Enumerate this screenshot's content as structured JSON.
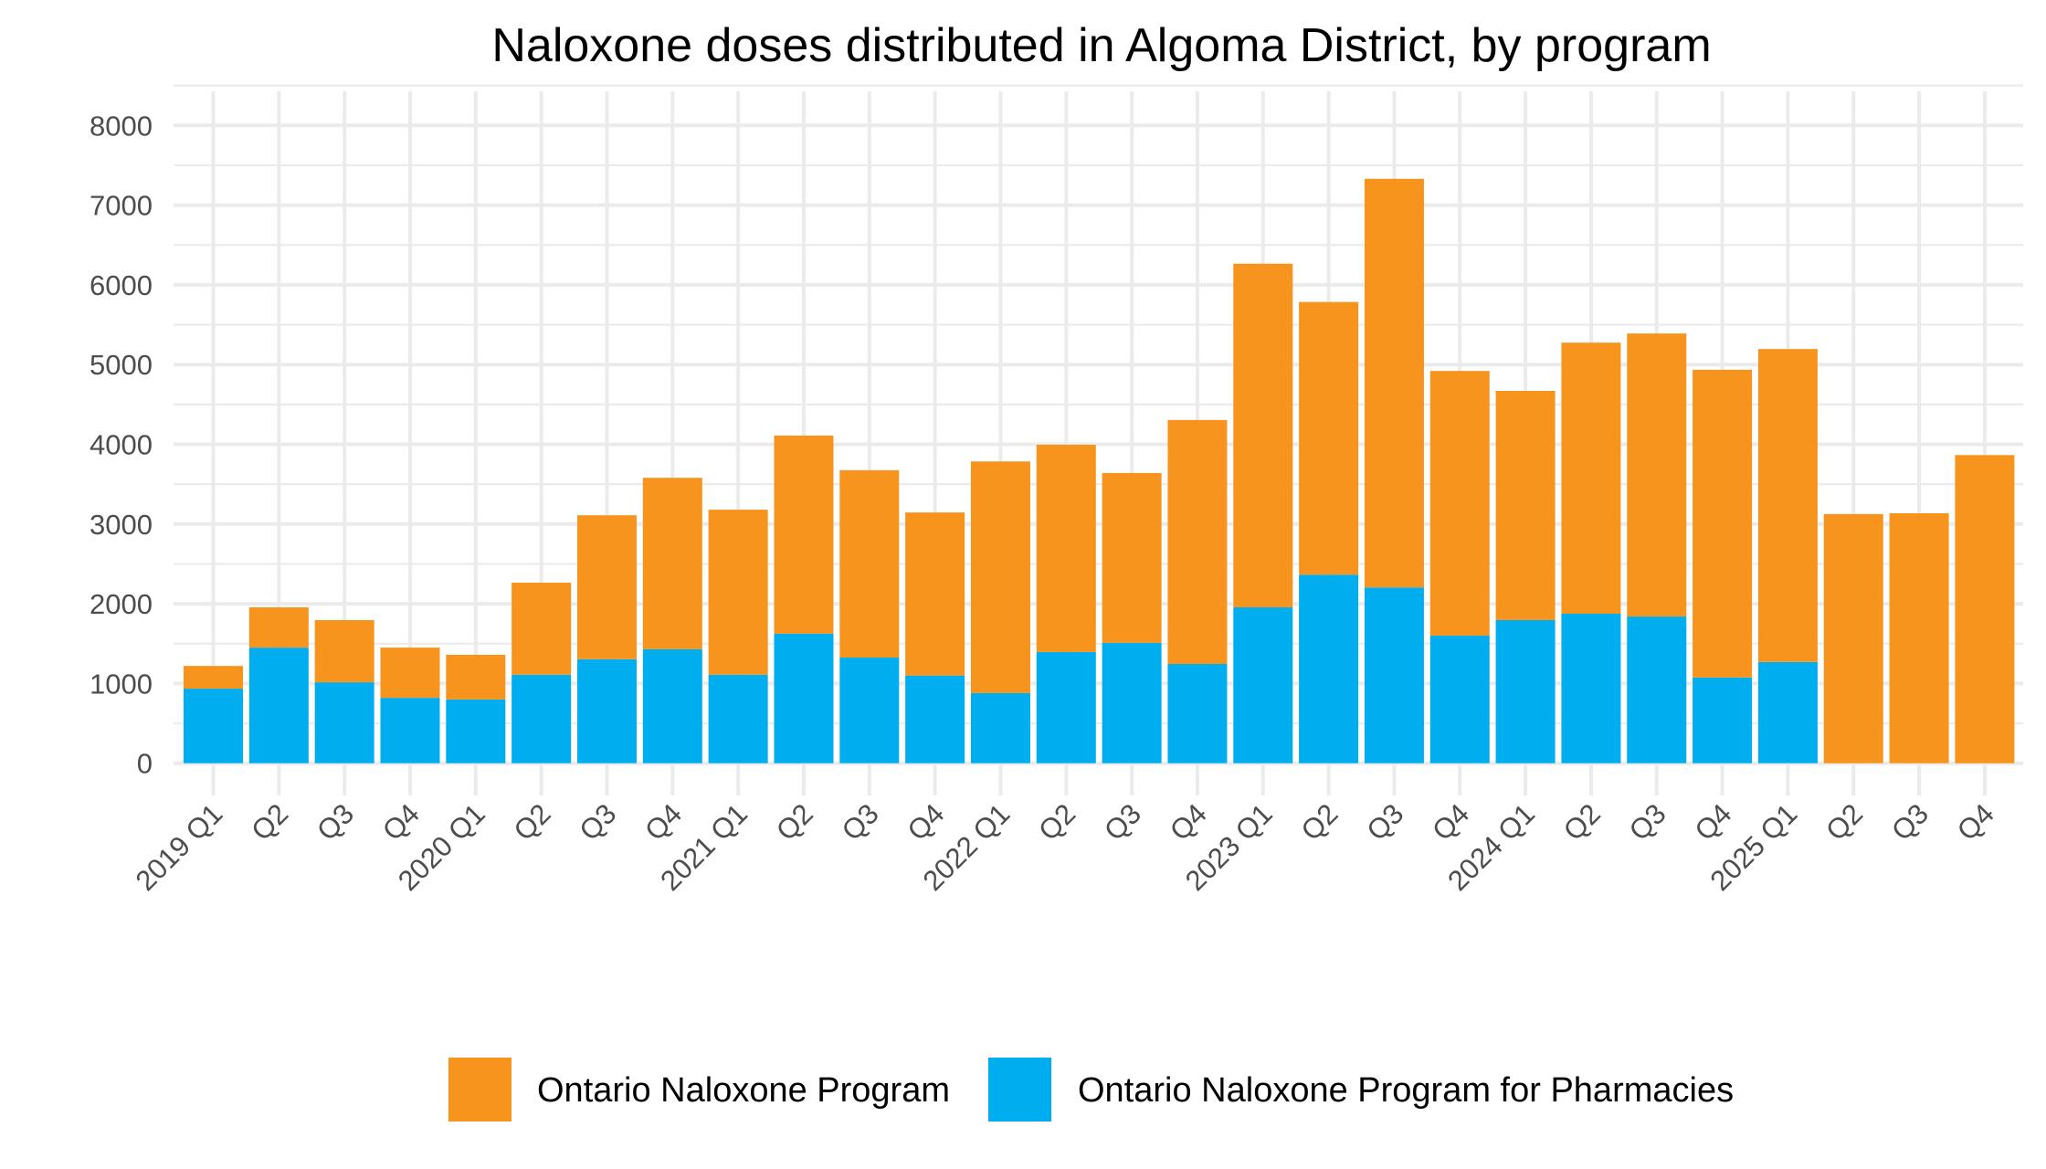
{
  "chart_data": {
    "type": "bar",
    "stacked": true,
    "title": "Naloxone doses distributed in Algoma District, by program",
    "xlabel": "",
    "ylabel": "",
    "ylim": [
      0,
      8000
    ],
    "yticks": [
      "0",
      "1000",
      "2000",
      "3000",
      "4000",
      "5000",
      "6000",
      "7000",
      "8000"
    ],
    "grid": true,
    "legend_position": "bottom",
    "categories": [
      "2019 Q1",
      "Q2",
      "Q3",
      "Q4",
      "2020 Q1",
      "Q2",
      "Q3",
      "Q4",
      "2021 Q1",
      "Q2",
      "Q3",
      "Q4",
      "2022 Q1",
      "Q2",
      "Q3",
      "Q4",
      "2023 Q1",
      "Q2",
      "Q3",
      "Q4",
      "2024 Q1",
      "Q2",
      "Q3",
      "Q4",
      "2025 Q1",
      "Q2",
      "Q3",
      "Q4"
    ],
    "series": [
      {
        "name": "Ontario Naloxone Program for Pharmacies",
        "color": "#00aeef",
        "values": [
          935,
          1450,
          1015,
          820,
          800,
          1110,
          1305,
          1430,
          1110,
          1625,
          1325,
          1100,
          880,
          1395,
          1510,
          1245,
          1955,
          2365,
          2205,
          1600,
          1795,
          1875,
          1840,
          1075,
          1270,
          0,
          0,
          0
        ]
      },
      {
        "name": "Ontario Naloxone Program",
        "color": "#f7941e",
        "values": [
          285,
          505,
          780,
          630,
          560,
          1155,
          1805,
          2150,
          2070,
          2485,
          2350,
          2045,
          2905,
          2600,
          2130,
          3060,
          4310,
          3420,
          5125,
          3320,
          2875,
          3400,
          3550,
          3860,
          3925,
          3125,
          3135,
          3865
        ]
      }
    ],
    "legend": [
      {
        "label": "Ontario Naloxone Program",
        "color": "#f7941e"
      },
      {
        "label": "Ontario Naloxone Program for Pharmacies",
        "color": "#00aeef"
      }
    ]
  }
}
